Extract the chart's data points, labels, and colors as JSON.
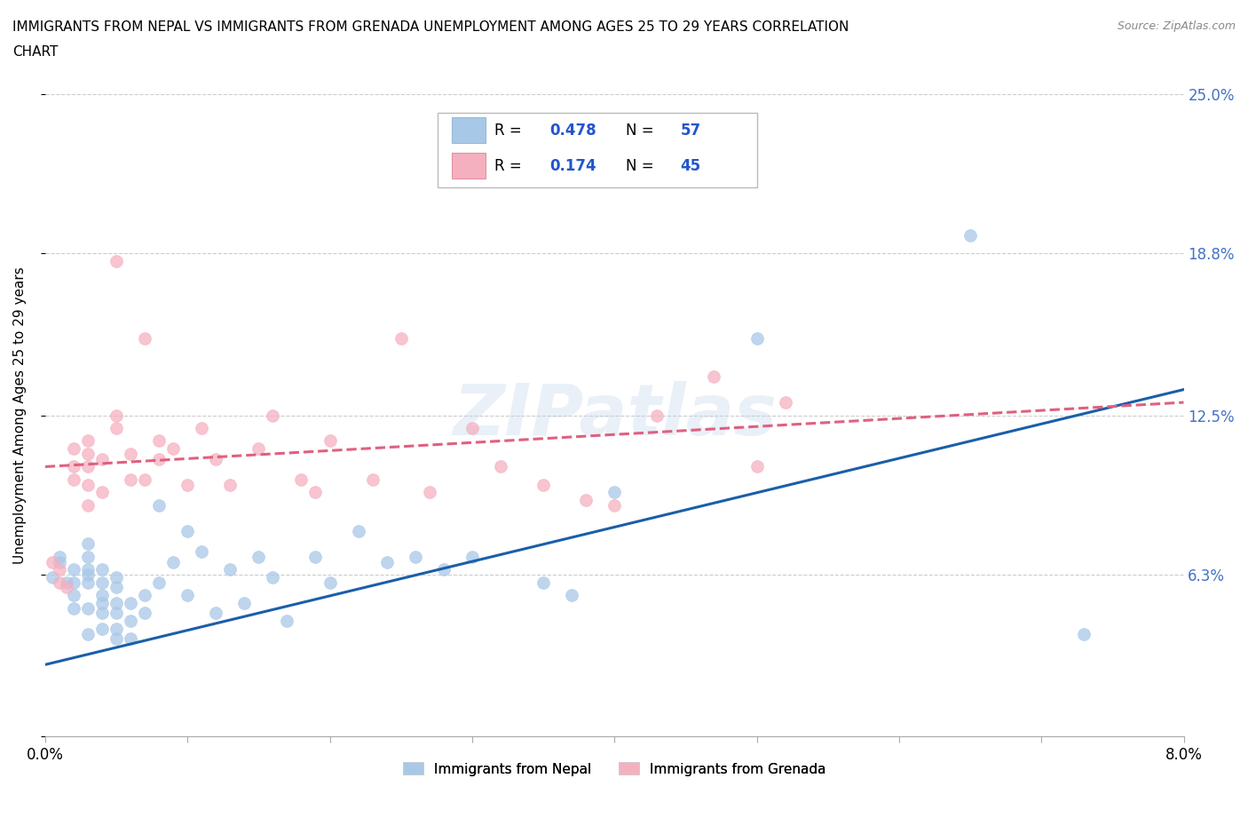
{
  "title_line1": "IMMIGRANTS FROM NEPAL VS IMMIGRANTS FROM GRENADA UNEMPLOYMENT AMONG AGES 25 TO 29 YEARS CORRELATION",
  "title_line2": "CHART",
  "source": "Source: ZipAtlas.com",
  "ylabel": "Unemployment Among Ages 25 to 29 years",
  "xlim": [
    0.0,
    0.08
  ],
  "ylim": [
    0.0,
    0.25
  ],
  "xtick_positions": [
    0.0,
    0.01,
    0.02,
    0.03,
    0.04,
    0.05,
    0.06,
    0.07,
    0.08
  ],
  "xticklabels": [
    "0.0%",
    "",
    "",
    "",
    "",
    "",
    "",
    "",
    "8.0%"
  ],
  "ytick_positions": [
    0.0,
    0.063,
    0.125,
    0.188,
    0.25
  ],
  "ytick_labels": [
    "",
    "6.3%",
    "12.5%",
    "18.8%",
    "25.0%"
  ],
  "nepal_color": "#a8c8e8",
  "grenada_color": "#f5b0c0",
  "nepal_line_color": "#1a5fa8",
  "grenada_line_color": "#e06080",
  "watermark": "ZIPatlas",
  "nepal_x": [
    0.0005,
    0.001,
    0.001,
    0.0015,
    0.002,
    0.002,
    0.002,
    0.002,
    0.003,
    0.003,
    0.003,
    0.003,
    0.003,
    0.003,
    0.003,
    0.004,
    0.004,
    0.004,
    0.004,
    0.004,
    0.004,
    0.005,
    0.005,
    0.005,
    0.005,
    0.005,
    0.005,
    0.006,
    0.006,
    0.006,
    0.007,
    0.007,
    0.008,
    0.008,
    0.009,
    0.01,
    0.01,
    0.011,
    0.012,
    0.013,
    0.014,
    0.015,
    0.016,
    0.017,
    0.019,
    0.02,
    0.022,
    0.024,
    0.026,
    0.028,
    0.03,
    0.035,
    0.037,
    0.04,
    0.05,
    0.065,
    0.073
  ],
  "nepal_y": [
    0.062,
    0.068,
    0.07,
    0.06,
    0.05,
    0.055,
    0.06,
    0.065,
    0.04,
    0.05,
    0.06,
    0.063,
    0.065,
    0.07,
    0.075,
    0.042,
    0.048,
    0.052,
    0.055,
    0.06,
    0.065,
    0.038,
    0.042,
    0.048,
    0.052,
    0.058,
    0.062,
    0.038,
    0.045,
    0.052,
    0.048,
    0.055,
    0.06,
    0.09,
    0.068,
    0.055,
    0.08,
    0.072,
    0.048,
    0.065,
    0.052,
    0.07,
    0.062,
    0.045,
    0.07,
    0.06,
    0.08,
    0.068,
    0.07,
    0.065,
    0.07,
    0.06,
    0.055,
    0.095,
    0.155,
    0.195,
    0.04
  ],
  "grenada_x": [
    0.0005,
    0.001,
    0.001,
    0.0015,
    0.002,
    0.002,
    0.002,
    0.003,
    0.003,
    0.003,
    0.003,
    0.003,
    0.004,
    0.004,
    0.005,
    0.005,
    0.005,
    0.006,
    0.006,
    0.007,
    0.007,
    0.008,
    0.008,
    0.009,
    0.01,
    0.011,
    0.012,
    0.013,
    0.015,
    0.016,
    0.018,
    0.019,
    0.02,
    0.023,
    0.025,
    0.027,
    0.03,
    0.032,
    0.035,
    0.038,
    0.04,
    0.043,
    0.047,
    0.05,
    0.052
  ],
  "grenada_y": [
    0.068,
    0.065,
    0.06,
    0.058,
    0.1,
    0.105,
    0.112,
    0.09,
    0.098,
    0.105,
    0.11,
    0.115,
    0.095,
    0.108,
    0.12,
    0.125,
    0.185,
    0.1,
    0.11,
    0.1,
    0.155,
    0.108,
    0.115,
    0.112,
    0.098,
    0.12,
    0.108,
    0.098,
    0.112,
    0.125,
    0.1,
    0.095,
    0.115,
    0.1,
    0.155,
    0.095,
    0.12,
    0.105,
    0.098,
    0.092,
    0.09,
    0.125,
    0.14,
    0.105,
    0.13
  ]
}
